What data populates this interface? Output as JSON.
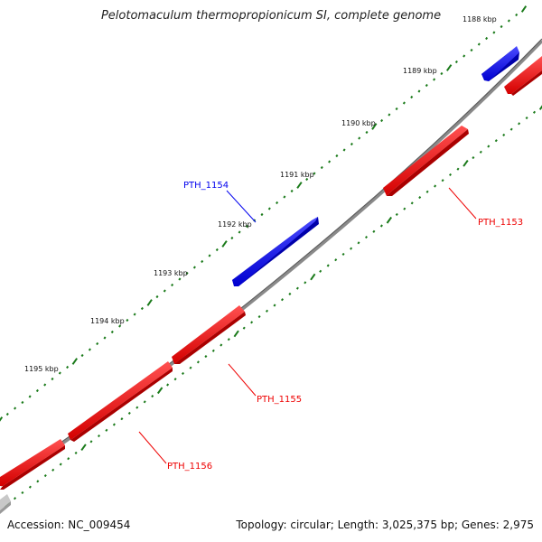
{
  "title": "Pelotomaculum thermopropionicum SI, complete genome",
  "footer": {
    "accession": "Accession: NC_009454",
    "stats": "Topology: circular; Length: 3,025,375 bp; Genes: 2,975"
  },
  "colors": {
    "forward_gene": "#0000ee",
    "reverse_gene": "#ee0000",
    "backbone": "#888888",
    "tick": "#1a7a1a",
    "other_gene": "#bbbbbb"
  },
  "ticks": [
    {
      "label": "1188 kbp"
    },
    {
      "label": "1189 kbp"
    },
    {
      "label": "1190 kbp"
    },
    {
      "label": "1191 kbp"
    },
    {
      "label": "1192 kbp"
    },
    {
      "label": "1193 kbp"
    },
    {
      "label": "1194 kbp"
    },
    {
      "label": "1195 kbp"
    }
  ],
  "genes": [
    {
      "name": "PTH_1153",
      "strand": "reverse"
    },
    {
      "name": "PTH_1154",
      "strand": "forward"
    },
    {
      "name": "PTH_1155",
      "strand": "reverse"
    },
    {
      "name": "PTH_1156",
      "strand": "reverse"
    }
  ]
}
